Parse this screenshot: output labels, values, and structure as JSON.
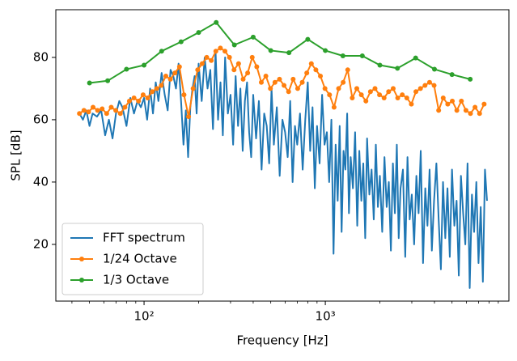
{
  "chart_data": {
    "type": "line",
    "x_label": "Frequency [Hz]",
    "y_label": "SPL [dB]",
    "xscale": "log",
    "xlim": [
      32.6,
      10300
    ],
    "ylim": [
      1.8,
      95.3
    ],
    "xticks": [
      {
        "value": 100,
        "label": "10²"
      },
      {
        "value": 1000,
        "label": "10³"
      }
    ],
    "xminorticks": [
      40,
      50,
      60,
      70,
      80,
      90,
      200,
      300,
      400,
      500,
      600,
      700,
      800,
      900,
      2000,
      3000,
      4000,
      5000,
      6000,
      7000,
      8000,
      9000
    ],
    "yticks": [
      20,
      40,
      60,
      80
    ],
    "legend": "lower left",
    "series": [
      {
        "name": "FFT spectrum",
        "color": "#1f77b4",
        "marker": false,
        "x": [
          44,
          46,
          48,
          50,
          52,
          55,
          58,
          61,
          64,
          67,
          70,
          73,
          76,
          80,
          84,
          88,
          92,
          96,
          100,
          104,
          108,
          112,
          116,
          120,
          125,
          130,
          135,
          140,
          145,
          150,
          155,
          160,
          165,
          170,
          175,
          180,
          185,
          190,
          195,
          200,
          208,
          216,
          224,
          232,
          240,
          248,
          256,
          264,
          272,
          280,
          290,
          300,
          310,
          320,
          330,
          340,
          350,
          360,
          370,
          380,
          390,
          400,
          415,
          430,
          445,
          460,
          475,
          490,
          505,
          520,
          540,
          560,
          580,
          600,
          620,
          640,
          660,
          680,
          700,
          725,
          750,
          775,
          800,
          825,
          850,
          875,
          900,
          930,
          960,
          990,
          1020,
          1050,
          1080,
          1110,
          1140,
          1170,
          1200,
          1230,
          1260,
          1290,
          1320,
          1350,
          1380,
          1420,
          1460,
          1500,
          1540,
          1580,
          1620,
          1660,
          1700,
          1750,
          1800,
          1850,
          1900,
          1950,
          2000,
          2060,
          2120,
          2180,
          2240,
          2300,
          2360,
          2420,
          2480,
          2540,
          2600,
          2680,
          2760,
          2840,
          2920,
          3000,
          3090,
          3180,
          3270,
          3360,
          3460,
          3560,
          3660,
          3760,
          3870,
          3980,
          4100,
          4220,
          4340,
          4460,
          4590,
          4720,
          4860,
          5000,
          5150,
          5300,
          5450,
          5600,
          5760,
          5920,
          6090,
          6260,
          6440,
          6620,
          6810,
          7000,
          7200,
          7400,
          7600,
          7800
        ],
        "values": [
          62,
          60,
          63,
          58,
          62,
          61,
          63,
          55,
          60,
          54,
          62,
          66,
          64,
          58,
          67,
          62,
          66,
          64,
          67,
          60,
          70,
          62,
          72,
          66,
          75,
          68,
          63,
          76,
          74,
          70,
          78,
          66,
          52,
          63,
          48,
          64,
          70,
          74,
          62,
          78,
          66,
          80,
          70,
          76,
          57,
          82,
          60,
          72,
          55,
          80,
          62,
          68,
          52,
          74,
          58,
          70,
          50,
          66,
          72,
          56,
          48,
          68,
          54,
          66,
          44,
          62,
          58,
          46,
          70,
          52,
          64,
          42,
          60,
          56,
          48,
          66,
          40,
          58,
          52,
          62,
          44,
          60,
          72,
          50,
          64,
          38,
          58,
          46,
          68,
          52,
          56,
          40,
          60,
          17,
          52,
          34,
          58,
          24,
          50,
          44,
          62,
          30,
          48,
          38,
          56,
          26,
          50,
          34,
          46,
          22,
          54,
          36,
          44,
          28,
          52,
          32,
          42,
          24,
          48,
          32,
          40,
          18,
          46,
          30,
          52,
          22,
          38,
          44,
          16,
          48,
          28,
          36,
          20,
          42,
          30,
          50,
          14,
          38,
          26,
          44,
          18,
          34,
          46,
          28,
          12,
          40,
          22,
          38,
          16,
          44,
          26,
          34,
          10,
          42,
          30,
          20,
          46,
          6,
          36,
          24,
          40,
          14,
          32,
          8,
          44,
          34
        ]
      },
      {
        "name": "1/24 Octave",
        "color": "#ff7f0e",
        "marker": true,
        "x": [
          44,
          46.6,
          49.4,
          52.3,
          55.4,
          58.7,
          62.2,
          65.9,
          69.8,
          74,
          78.4,
          83,
          88,
          93.2,
          98.8,
          104.7,
          110.9,
          117.5,
          124.5,
          131.9,
          139.7,
          148,
          156.8,
          166.1,
          176,
          186.5,
          197.6,
          209.3,
          221.7,
          234.9,
          248.9,
          263.7,
          279.4,
          296,
          313.6,
          332.2,
          352,
          372.9,
          395.1,
          418.6,
          443.5,
          469.9,
          497.8,
          527.4,
          558.8,
          592,
          627.2,
          664.5,
          704,
          745.9,
          790.2,
          837.2,
          887,
          939.7,
          995.6,
          1054.8,
          1117.5,
          1184,
          1254.4,
          1329,
          1408,
          1491.7,
          1580.4,
          1674.4,
          1774,
          1879.5,
          1991.2,
          2109.6,
          2235,
          2368,
          2508.8,
          2658,
          2816,
          2983.4,
          3160.9,
          3348.8,
          3548.1,
          3759.1,
          3982.6,
          4219.4,
          4470.4,
          4736.2,
          5017.9,
          5316.2,
          5632.3,
          5967.3,
          6322,
          6698.1,
          7096.3,
          7518.4
        ],
        "values": [
          62,
          63,
          62.5,
          64,
          63,
          63.5,
          62,
          64,
          63,
          62,
          64,
          66,
          67,
          66,
          68,
          67,
          69,
          70,
          71,
          74,
          73,
          75,
          77,
          68,
          61,
          70,
          76,
          78,
          80,
          79,
          82,
          83,
          82,
          80,
          76,
          78,
          73,
          75,
          80,
          77,
          72,
          74,
          70,
          72,
          73,
          71,
          69,
          73,
          70,
          72,
          75,
          78,
          76,
          74,
          70,
          68,
          64,
          70,
          72,
          76,
          67,
          70,
          68,
          66,
          69,
          70,
          68,
          67,
          69,
          70,
          67,
          68,
          67,
          65,
          69,
          70,
          71,
          72,
          71,
          63,
          67,
          65,
          66,
          63,
          66,
          63,
          62,
          64,
          62,
          65
        ]
      },
      {
        "name": "1/3 Octave",
        "color": "#2ca02c",
        "marker": true,
        "x": [
          50,
          63,
          80,
          100,
          125,
          160,
          200,
          250,
          315,
          400,
          500,
          630,
          800,
          1000,
          1250,
          1600,
          2000,
          2500,
          3150,
          4000,
          5000,
          6300
        ],
        "values": [
          71.8,
          72.5,
          76.2,
          77.5,
          82,
          85,
          88,
          91.2,
          84,
          86.5,
          82.2,
          81.5,
          85.8,
          82.2,
          80.5,
          80.5,
          77.5,
          76.5,
          79.8,
          76.2,
          74.5,
          73
        ]
      }
    ]
  }
}
